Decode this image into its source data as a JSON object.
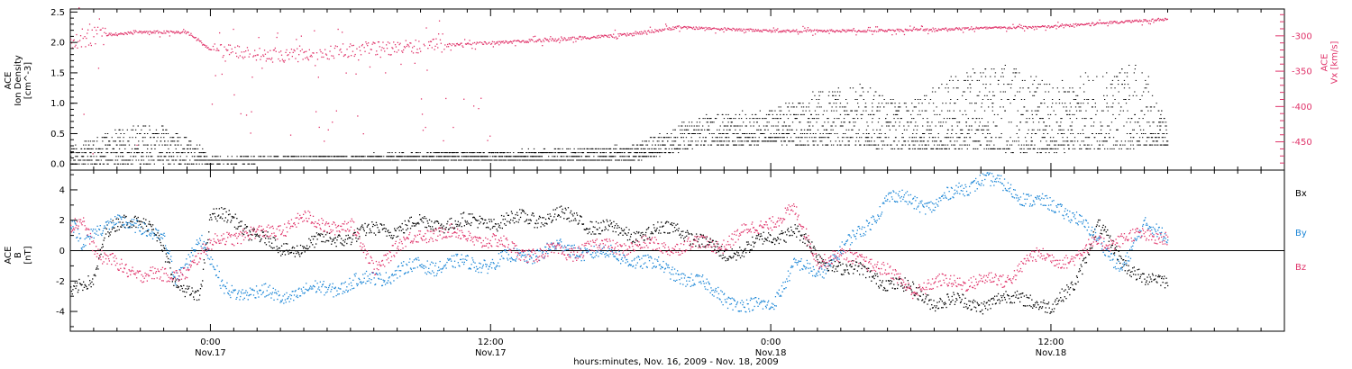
{
  "figure": {
    "xlabel": "hours:minutes, Nov. 16, 2009 - Nov. 18, 2009",
    "x_range_hours": [
      -6.0,
      46.0
    ],
    "x_ticks": [
      {
        "hour": 0,
        "time": "0:00",
        "day": "Nov.17"
      },
      {
        "hour": 12,
        "time": "12:00",
        "day": "Nov.17"
      },
      {
        "hour": 24,
        "time": "0:00",
        "day": "Nov.18"
      },
      {
        "hour": 36,
        "time": "12:00",
        "day": "Nov.18"
      }
    ]
  },
  "chart_data": [
    {
      "type": "scatter",
      "panel": "top",
      "ylabel_lines": [
        "ACE",
        "Ion Density",
        "[cm^-3]"
      ],
      "ylim": [
        -0.1,
        2.55
      ],
      "yticks": [
        "0.0",
        "0.5",
        "1.0",
        "1.5",
        "2.0",
        "2.5"
      ],
      "ytick_values": [
        0.0,
        0.5,
        1.0,
        1.5,
        2.0,
        2.5
      ],
      "right_axis": {
        "label_lines": [
          "ACE",
          "Vx [km/s]"
        ],
        "ylim": [
          -490,
          -262
        ],
        "yticks": [
          "-300",
          "-350",
          "-400",
          "-450"
        ],
        "ytick_values": [
          -300,
          -350,
          -400,
          -450
        ],
        "color": "#e0336a"
      },
      "series": [
        {
          "color": "#000000",
          "note_x": "hours after Nov.17 0:00",
          "baseline": [
            {
              "x": -6.0,
              "y": 0.0
            },
            {
              "x": 0.0,
              "y": 0.02
            },
            {
              "x": 6.0,
              "y": 0.05
            },
            {
              "x": 12.0,
              "y": 0.05
            },
            {
              "x": 18.0,
              "y": 0.05
            },
            {
              "x": 21.0,
              "y": 0.3
            },
            {
              "x": 24.0,
              "y": 0.35
            },
            {
              "x": 30.0,
              "y": 0.25
            },
            {
              "x": 36.0,
              "y": 0.2
            },
            {
              "x": 41.0,
              "y": 0.3
            }
          ],
          "upper": [
            {
              "x": -6.0,
              "y": 0.3
            },
            {
              "x": -3.0,
              "y": 0.7
            },
            {
              "x": -1.0,
              "y": 0.5
            },
            {
              "x": 0.0,
              "y": 0.1
            },
            {
              "x": 6.0,
              "y": 0.15
            },
            {
              "x": 12.0,
              "y": 0.2
            },
            {
              "x": 18.0,
              "y": 0.3
            },
            {
              "x": 21.0,
              "y": 0.8
            },
            {
              "x": 24.0,
              "y": 0.9
            },
            {
              "x": 26.0,
              "y": 1.2
            },
            {
              "x": 28.0,
              "y": 1.3
            },
            {
              "x": 30.0,
              "y": 1.0
            },
            {
              "x": 32.0,
              "y": 1.5
            },
            {
              "x": 34.0,
              "y": 1.7
            },
            {
              "x": 36.0,
              "y": 1.3
            },
            {
              "x": 38.0,
              "y": 1.6
            },
            {
              "x": 40.0,
              "y": 1.7
            },
            {
              "x": 41.0,
              "y": 0.6
            }
          ]
        },
        {
          "color": "#e0336a",
          "axis": "right",
          "trend": [
            {
              "x": -6.0,
              "y": -305
            },
            {
              "x": -5.0,
              "y": -300
            },
            {
              "x": -3.0,
              "y": -295
            },
            {
              "x": -1.0,
              "y": -295
            },
            {
              "x": 0.0,
              "y": -320
            },
            {
              "x": 3.0,
              "y": -330
            },
            {
              "x": 6.0,
              "y": -320
            },
            {
              "x": 9.0,
              "y": -315
            },
            {
              "x": 12.0,
              "y": -310
            },
            {
              "x": 15.0,
              "y": -305
            },
            {
              "x": 18.0,
              "y": -298
            },
            {
              "x": 20.0,
              "y": -288
            },
            {
              "x": 24.0,
              "y": -293
            },
            {
              "x": 28.0,
              "y": -293
            },
            {
              "x": 32.0,
              "y": -290
            },
            {
              "x": 36.0,
              "y": -287
            },
            {
              "x": 39.0,
              "y": -280
            },
            {
              "x": 41.0,
              "y": -276
            }
          ]
        }
      ]
    },
    {
      "type": "scatter",
      "panel": "bottom",
      "ylabel_lines": [
        "ACE",
        "B",
        "[nT]"
      ],
      "ylim": [
        -5.3,
        5.3
      ],
      "yticks": [
        "-4",
        "-2",
        "0",
        "2",
        "4"
      ],
      "ytick_values": [
        -4,
        -2,
        0,
        2,
        4
      ],
      "zero_line": true,
      "legend": {
        "position": "right"
      },
      "series": [
        {
          "name": "Bx",
          "color": "#000000",
          "points": [
            {
              "x": -6.0,
              "y": -3.0
            },
            {
              "x": -5.0,
              "y": -1.8
            },
            {
              "x": -4.5,
              "y": 1.5
            },
            {
              "x": -2.5,
              "y": 2.0
            },
            {
              "x": -1.5,
              "y": -2.5
            },
            {
              "x": -0.5,
              "y": -2.8
            },
            {
              "x": 0.0,
              "y": 2.3
            },
            {
              "x": 1.0,
              "y": 2.0
            },
            {
              "x": 3.0,
              "y": 0.0
            },
            {
              "x": 6.0,
              "y": 1.0
            },
            {
              "x": 9.0,
              "y": 1.8
            },
            {
              "x": 12.0,
              "y": 1.9
            },
            {
              "x": 15.0,
              "y": 2.3
            },
            {
              "x": 18.0,
              "y": 1.0
            },
            {
              "x": 20.0,
              "y": 1.5
            },
            {
              "x": 22.0,
              "y": -0.3
            },
            {
              "x": 24.0,
              "y": 0.8
            },
            {
              "x": 25.0,
              "y": 1.5
            },
            {
              "x": 26.0,
              "y": -0.5
            },
            {
              "x": 29.0,
              "y": -2.0
            },
            {
              "x": 31.0,
              "y": -3.3
            },
            {
              "x": 33.0,
              "y": -3.5
            },
            {
              "x": 35.0,
              "y": -3.0
            },
            {
              "x": 36.0,
              "y": -4.0
            },
            {
              "x": 37.0,
              "y": -2.0
            },
            {
              "x": 38.0,
              "y": 1.5
            },
            {
              "x": 39.0,
              "y": -0.5
            },
            {
              "x": 40.0,
              "y": -2.0
            },
            {
              "x": 41.0,
              "y": -2.0
            }
          ]
        },
        {
          "name": "By",
          "color": "#1a85d6",
          "points": [
            {
              "x": -6.0,
              "y": 1.7
            },
            {
              "x": -5.5,
              "y": 0.5
            },
            {
              "x": -5.0,
              "y": 1.5
            },
            {
              "x": -3.0,
              "y": 1.8
            },
            {
              "x": -2.0,
              "y": 0.5
            },
            {
              "x": -1.5,
              "y": -2.0
            },
            {
              "x": -0.5,
              "y": 1.0
            },
            {
              "x": 0.5,
              "y": -2.5
            },
            {
              "x": 3.0,
              "y": -3.0
            },
            {
              "x": 6.0,
              "y": -2.2
            },
            {
              "x": 9.0,
              "y": -1.0
            },
            {
              "x": 12.0,
              "y": -0.8
            },
            {
              "x": 15.0,
              "y": 0.2
            },
            {
              "x": 18.0,
              "y": -0.5
            },
            {
              "x": 20.0,
              "y": -1.5
            },
            {
              "x": 22.0,
              "y": -3.0
            },
            {
              "x": 23.0,
              "y": -3.8
            },
            {
              "x": 24.0,
              "y": -3.5
            },
            {
              "x": 25.0,
              "y": -1.0
            },
            {
              "x": 26.0,
              "y": -1.5
            },
            {
              "x": 28.0,
              "y": 1.5
            },
            {
              "x": 29.0,
              "y": 3.5
            },
            {
              "x": 31.0,
              "y": 3.0
            },
            {
              "x": 33.0,
              "y": 4.8
            },
            {
              "x": 35.0,
              "y": 3.5
            },
            {
              "x": 36.0,
              "y": 2.8
            },
            {
              "x": 37.0,
              "y": 2.5
            },
            {
              "x": 38.0,
              "y": 0.5
            },
            {
              "x": 39.0,
              "y": -1.0
            },
            {
              "x": 40.0,
              "y": 1.5
            },
            {
              "x": 41.0,
              "y": 1.2
            }
          ]
        },
        {
          "name": "Bz",
          "color": "#e0336a",
          "points": [
            {
              "x": -6.0,
              "y": 1.5
            },
            {
              "x": -5.5,
              "y": 2.3
            },
            {
              "x": -4.8,
              "y": -0.5
            },
            {
              "x": -3.0,
              "y": -1.5
            },
            {
              "x": -2.0,
              "y": -1.8
            },
            {
              "x": -1.0,
              "y": -1.2
            },
            {
              "x": 0.5,
              "y": 1.0
            },
            {
              "x": 2.0,
              "y": 1.0
            },
            {
              "x": 4.0,
              "y": 2.0
            },
            {
              "x": 6.0,
              "y": 1.5
            },
            {
              "x": 7.0,
              "y": -1.0
            },
            {
              "x": 9.0,
              "y": 1.2
            },
            {
              "x": 11.0,
              "y": 1.0
            },
            {
              "x": 14.0,
              "y": -0.3
            },
            {
              "x": 17.0,
              "y": 0.3
            },
            {
              "x": 20.0,
              "y": 0.3
            },
            {
              "x": 22.0,
              "y": 0.5
            },
            {
              "x": 24.0,
              "y": 2.0
            },
            {
              "x": 25.0,
              "y": 2.5
            },
            {
              "x": 26.0,
              "y": -0.5
            },
            {
              "x": 28.0,
              "y": -0.5
            },
            {
              "x": 30.0,
              "y": -2.5
            },
            {
              "x": 32.0,
              "y": -2.0
            },
            {
              "x": 34.0,
              "y": -2.0
            },
            {
              "x": 35.0,
              "y": -0.5
            },
            {
              "x": 37.0,
              "y": -0.5
            },
            {
              "x": 38.0,
              "y": 0.5
            },
            {
              "x": 39.0,
              "y": 0.8
            },
            {
              "x": 41.0,
              "y": 1.0
            }
          ]
        }
      ]
    }
  ]
}
